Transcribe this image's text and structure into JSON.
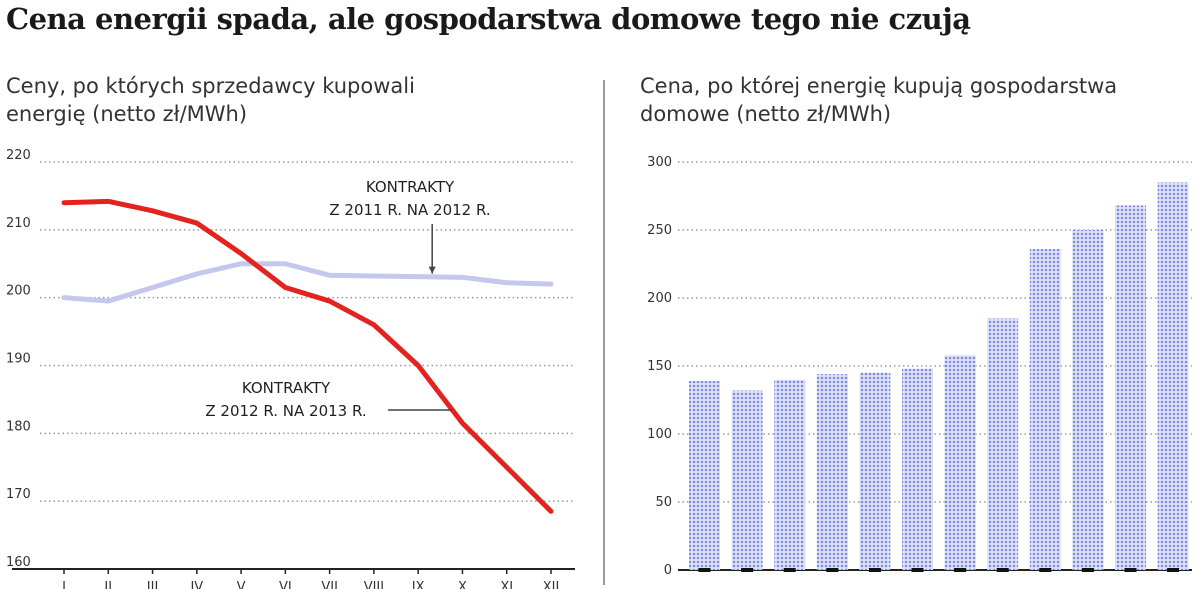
{
  "title": "Cena energii spada, ale gospodarstwa domowe tego nie czują",
  "chart_data": [
    {
      "type": "line",
      "title": "Ceny, po których sprzedawcy kupowali energię (netto zł/MWh)",
      "ylim": [
        160,
        220
      ],
      "yticks": [
        160,
        170,
        180,
        190,
        200,
        210,
        220
      ],
      "x": [
        "I",
        "II",
        "III",
        "IV",
        "V",
        "VI",
        "VII",
        "VIII",
        "IX",
        "X",
        "XI",
        "XII"
      ],
      "grid": true,
      "series": [
        {
          "name": "KONTRAKTY Z 2011 R. NA 2012 R.",
          "color": "#c5c7ee",
          "values": [
            200,
            199.5,
            201.5,
            203.5,
            205,
            205,
            203.3,
            203.2,
            203.1,
            203,
            202.2,
            202
          ]
        },
        {
          "name": "KONTRAKTY Z 2012 R. NA 2013 R.",
          "color": "#e3231f",
          "values": [
            214,
            214.2,
            212.8,
            211,
            206.5,
            201.5,
            199.5,
            196,
            190,
            181.5,
            175,
            168.5
          ]
        }
      ],
      "annotations": [
        {
          "lines": [
            "KONTRAKTY",
            "Z 2011 R. NA 2012 R."
          ],
          "series": 0
        },
        {
          "lines": [
            "KONTRAKTY",
            "Z 2012 R. NA 2013 R."
          ],
          "series": 1
        }
      ]
    },
    {
      "type": "bar",
      "title": "Cena, po której energię kupują gospodarstwa domowe (netto zł/MWh)",
      "ylim": [
        0,
        300
      ],
      "yticks": [
        0,
        50,
        100,
        150,
        200,
        250,
        300
      ],
      "grid": true,
      "color": "#8f9be3",
      "values": [
        139,
        132,
        140,
        144,
        145,
        148,
        158,
        185,
        236,
        250,
        268,
        285
      ]
    }
  ]
}
